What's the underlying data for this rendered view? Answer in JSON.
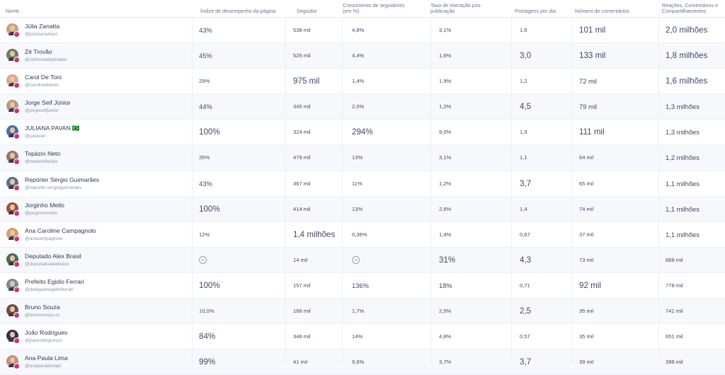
{
  "columns": [
    {
      "key": "nome",
      "label": "Nome"
    },
    {
      "key": "indice",
      "label": "Índice de desempenho da página"
    },
    {
      "key": "seguidor",
      "label": "Seguidor"
    },
    {
      "key": "crescimento",
      "label": "Crescimento de seguidores (em %)"
    },
    {
      "key": "taxa",
      "label": "Taxa de interação pós-publicação"
    },
    {
      "key": "postagens",
      "label": "Postagens por dia"
    },
    {
      "key": "comentarios",
      "label": "Número de comentários"
    },
    {
      "key": "reacoes",
      "label": "Reações, Comentários e Compartilhamentos"
    }
  ],
  "rows": [
    {
      "name": "Júlia Zanatta",
      "handle": "@juliazanattasc",
      "avatar_color": "#c9a27e",
      "cells": {
        "indice": "43%",
        "seguidor": "538 mil",
        "crescimento": "4,8%",
        "taxa": "3,1%",
        "postagens": "1,6",
        "comentarios": "101 mil",
        "reacoes": "2,0 milhões"
      }
    },
    {
      "name": "Zé Trovão",
      "handle": "@zetrovaodeputado",
      "avatar_color": "#6b7d5e",
      "cells": {
        "indice": "45%",
        "seguidor": "526 mil",
        "crescimento": "4,4%",
        "taxa": "1,6%",
        "postagens": "3,0",
        "comentarios": "133 mil",
        "reacoes": "1,8 milhões"
      }
    },
    {
      "name": "Carol De Toni",
      "handle": "@carolinedetoni",
      "avatar_color": "#d7a98b",
      "cells": {
        "indice": "29%",
        "seguidor": "975 mil",
        "crescimento": "1,4%",
        "taxa": "1,9%",
        "postagens": "1,2",
        "comentarios": "72 mil",
        "reacoes": "1,6 milhões"
      }
    },
    {
      "name": "Jorge Seif Júnior",
      "handle": "@jorgeseifjunior",
      "avatar_color": "#b59a82",
      "cells": {
        "indice": "44%",
        "seguidor": "345 mil",
        "crescimento": "2,0%",
        "taxa": "1,2%",
        "postagens": "4,5",
        "comentarios": "79 mil",
        "reacoes": "1,3 milhões"
      }
    },
    {
      "name": "JULIANA PAVAN 🇧🇷",
      "handle": "@jupavan",
      "avatar_color": "#4a6fa5",
      "cells": {
        "indice": "100%",
        "seguidor": "324 mil",
        "crescimento": "294%",
        "taxa": "9,0%",
        "postagens": "1,5",
        "comentarios": "111 mil",
        "reacoes": "1,3 milhões"
      }
    },
    {
      "name": "Topázio Neto",
      "handle": "@topaziofloripa",
      "avatar_color": "#8e7a6b",
      "cells": {
        "indice": "35%",
        "seguidor": "479 mil",
        "crescimento": "13%",
        "taxa": "3,1%",
        "postagens": "1,1",
        "comentarios": "64 mil",
        "reacoes": "1,2 milhões"
      }
    },
    {
      "name": "Repórter Sérgio Guimarães",
      "handle": "@reporter.sergioguimaraes",
      "avatar_color": "#5f6f7d",
      "cells": {
        "indice": "43%",
        "seguidor": "367 mil",
        "crescimento": "11%",
        "taxa": "1,2%",
        "postagens": "3,7",
        "comentarios": "65 mil",
        "reacoes": "1,1 milhões"
      }
    },
    {
      "name": "Jorginho Mello",
      "handle": "@jorginhomello",
      "avatar_color": "#a0523d",
      "cells": {
        "indice": "100%",
        "seguidor": "414 mil",
        "crescimento": "13%",
        "taxa": "2,6%",
        "postagens": "1,4",
        "comentarios": "74 mil",
        "reacoes": "1,1 milhões"
      }
    },
    {
      "name": "Ana Caroline Campagnolo",
      "handle": "@anacampagnolo",
      "avatar_color": "#d1a06b",
      "cells": {
        "indice": "12%",
        "seguidor": "1,4 milhões",
        "crescimento": "0,36%",
        "taxa": "1,4%",
        "postagens": "0,67",
        "comentarios": "37 mil",
        "reacoes": "1,1 milhões"
      }
    },
    {
      "name": "Deputado Alex Brasil",
      "handle": "@deputadoalexbrasil",
      "avatar_color": "#4e6b4a",
      "cells": {
        "indice": "",
        "seguidor": "14 mil",
        "crescimento": "",
        "taxa": "31%",
        "postagens": "4,3",
        "comentarios": "73 mil",
        "reacoes": "868 mil"
      }
    },
    {
      "name": "Prefeito Egidio Ferrari",
      "handle": "@delegadoegidioferrari",
      "avatar_color": "#7c8b9a",
      "cells": {
        "indice": "100%",
        "seguidor": "157 mil",
        "crescimento": "136%",
        "taxa": "18%",
        "postagens": "0,71",
        "comentarios": "92 mil",
        "reacoes": "778 mil"
      }
    },
    {
      "name": "Bruno Souza",
      "handle": "@brunosouza.sc",
      "avatar_color": "#6a4e3e",
      "cells": {
        "indice": "10,0%",
        "seguidor": "166 mil",
        "crescimento": "1,7%",
        "taxa": "2,5%",
        "postagens": "2,5",
        "comentarios": "35 mil",
        "reacoes": "741 mil"
      }
    },
    {
      "name": "João Rodrigues",
      "handle": "@joaorodriguessc",
      "avatar_color": "#2e3550",
      "cells": {
        "indice": "84%",
        "seguidor": "348 mil",
        "crescimento": "14%",
        "taxa": "4,8%",
        "postagens": "0,57",
        "comentarios": "35 mil",
        "reacoes": "651 mil"
      }
    },
    {
      "name": "Ana Paula Lima",
      "handle": "@anapaulalimapt",
      "avatar_color": "#c48f7a",
      "cells": {
        "indice": "99%",
        "seguidor": "41 mil",
        "crescimento": "9,6%",
        "taxa": "3,7%",
        "postagens": "3,7",
        "comentarios": "39 mil",
        "reacoes": "398 mil"
      }
    }
  ],
  "sizes": [
    {
      "indice": "m",
      "seguidor": "s",
      "crescimento": "s",
      "taxa": "s",
      "postagens": "s",
      "comentarios": "l",
      "reacoes": "l"
    },
    {
      "indice": "m",
      "seguidor": "s",
      "crescimento": "s",
      "taxa": "s",
      "postagens": "l",
      "comentarios": "l",
      "reacoes": "l"
    },
    {
      "indice": "s",
      "seguidor": "l",
      "crescimento": "s",
      "taxa": "s",
      "postagens": "s",
      "comentarios": "m",
      "reacoes": "l"
    },
    {
      "indice": "m",
      "seguidor": "s",
      "crescimento": "s",
      "taxa": "s",
      "postagens": "l",
      "comentarios": "m",
      "reacoes": "m"
    },
    {
      "indice": "l",
      "seguidor": "s",
      "crescimento": "l",
      "taxa": "s",
      "postagens": "s",
      "comentarios": "l",
      "reacoes": "m"
    },
    {
      "indice": "s",
      "seguidor": "s",
      "crescimento": "s",
      "taxa": "s",
      "postagens": "s",
      "comentarios": "s",
      "reacoes": "m"
    },
    {
      "indice": "m",
      "seguidor": "s",
      "crescimento": "s",
      "taxa": "s",
      "postagens": "l",
      "comentarios": "s",
      "reacoes": "m"
    },
    {
      "indice": "l",
      "seguidor": "s",
      "crescimento": "s",
      "taxa": "s",
      "postagens": "s",
      "comentarios": "s",
      "reacoes": "m"
    },
    {
      "indice": "s",
      "seguidor": "l",
      "crescimento": "s",
      "taxa": "s",
      "postagens": "s",
      "comentarios": "s",
      "reacoes": "m"
    },
    {
      "indice": "m",
      "seguidor": "s",
      "crescimento": "m",
      "taxa": "l",
      "postagens": "l",
      "comentarios": "s",
      "reacoes": "s"
    },
    {
      "indice": "l",
      "seguidor": "s",
      "crescimento": "m",
      "taxa": "m",
      "postagens": "s",
      "comentarios": "l",
      "reacoes": "s"
    },
    {
      "indice": "s",
      "seguidor": "s",
      "crescimento": "s",
      "taxa": "s",
      "postagens": "l",
      "comentarios": "s",
      "reacoes": "s"
    },
    {
      "indice": "l",
      "seguidor": "s",
      "crescimento": "s",
      "taxa": "s",
      "postagens": "s",
      "comentarios": "s",
      "reacoes": "s"
    },
    {
      "indice": "l",
      "seguidor": "s",
      "crescimento": "s",
      "taxa": "s",
      "postagens": "l",
      "comentarios": "s",
      "reacoes": "s"
    }
  ],
  "colors": {
    "accent": "#dd2a7b",
    "text": "#3f4a6b"
  }
}
